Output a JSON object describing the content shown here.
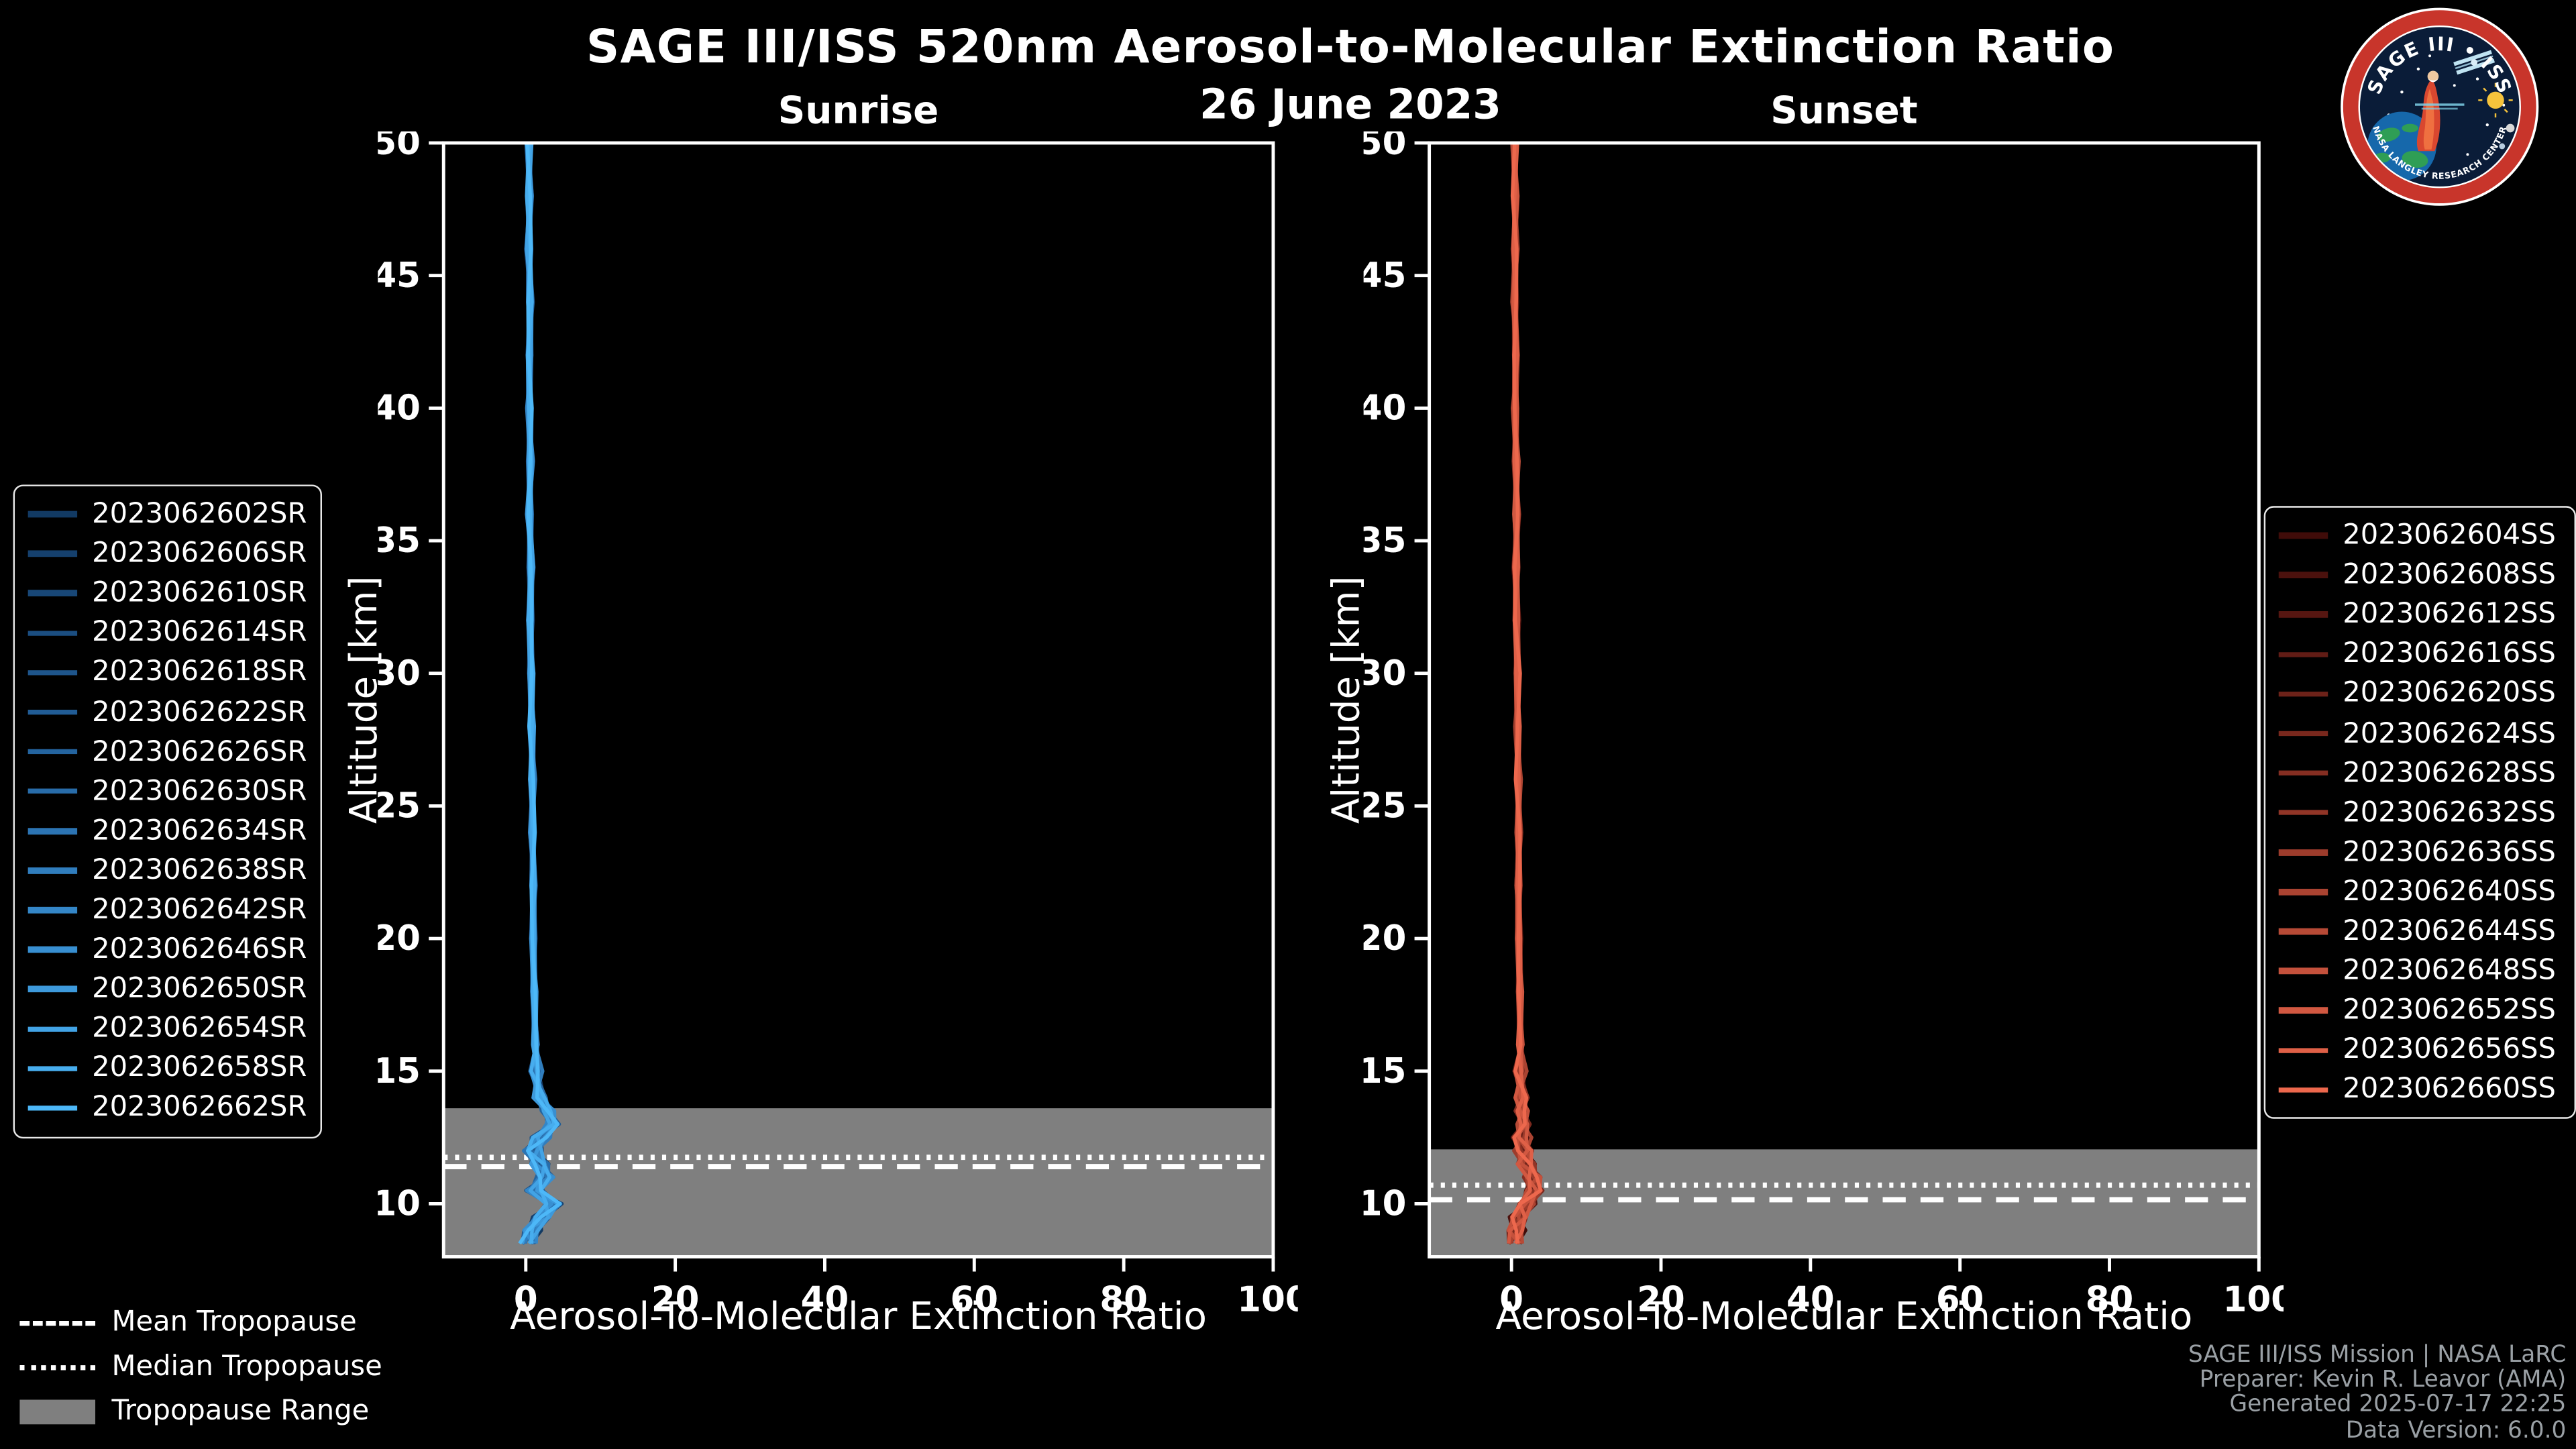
{
  "page": {
    "title": "SAGE III/ISS 520nm Aerosol-to-Molecular Extinction Ratio",
    "date": "26 June 2023",
    "background": "#000000"
  },
  "logo": {
    "text_top": "SAGE III • ISS",
    "text_bottom": "NASA LANGLEY RESEARCH CENTER",
    "ring_color": "#c8352b",
    "inner_color": "#0a1c38"
  },
  "tropopause_legend": {
    "items": [
      {
        "label": "Mean Tropopause",
        "style": "dashed"
      },
      {
        "label": "Median Tropopause",
        "style": "dotted"
      },
      {
        "label": "Tropopause Range",
        "style": "band"
      }
    ],
    "band_color": "#7f7f7f",
    "line_color": "#ffffff"
  },
  "credits": {
    "lines": [
      "SAGE III/ISS Mission | NASA LaRC",
      "Preparer: Kevin R. Leavor (AMA)",
      "Generated 2025-07-17 22:25",
      "Data Version: 6.0.0"
    ],
    "color": "#9aa0a5"
  },
  "chart_data": [
    {
      "type": "line",
      "title": "Sunrise",
      "xlabel": "Aerosol-To-Molecular Extinction Ratio",
      "ylabel": "Altitude [km]",
      "xlim": [
        -11,
        100
      ],
      "ylim": [
        8,
        50
      ],
      "xticks": [
        0,
        20,
        40,
        60,
        80,
        100
      ],
      "yticks": [
        10,
        15,
        20,
        25,
        30,
        35,
        40,
        45,
        50
      ],
      "grid": false,
      "legend_position": "left",
      "series_labels": [
        "2023062602SR",
        "2023062606SR",
        "2023062610SR",
        "2023062614SR",
        "2023062618SR",
        "2023062622SR",
        "2023062626SR",
        "2023062630SR",
        "2023062634SR",
        "2023062638SR",
        "2023062642SR",
        "2023062646SR",
        "2023062650SR",
        "2023062654SR",
        "2023062658SR",
        "2023062662SR"
      ],
      "series_colors": [
        "#123a63",
        "#15406d",
        "#184777",
        "#1b4e81",
        "#1e558b",
        "#215c95",
        "#24649f",
        "#286ca9",
        "#2c74b3",
        "#307dbd",
        "#3486c7",
        "#388fd1",
        "#3d99db",
        "#42a3e5",
        "#47adee",
        "#4db8f8"
      ],
      "tropopause": {
        "mean_km": 11.4,
        "median_km": 11.75,
        "range_top_km": 13.6,
        "range_bottom_km": 8.0
      },
      "profile": {
        "altitude_km": [
          50,
          48,
          46,
          44,
          42,
          40,
          38,
          36,
          34,
          32,
          30,
          28,
          26,
          24,
          22,
          20,
          18,
          16,
          15,
          14,
          13.5,
          13,
          12.5,
          12,
          11.5,
          11,
          10.5,
          10,
          9.5,
          9,
          8.5
        ],
        "ratio": [
          0.4,
          0.5,
          0.4,
          0.6,
          0.5,
          0.5,
          0.6,
          0.5,
          0.7,
          0.6,
          0.7,
          0.8,
          0.9,
          0.9,
          1.0,
          1.0,
          1.1,
          1.3,
          1.4,
          1.8,
          3.0,
          3.6,
          2.0,
          1.0,
          1.8,
          2.6,
          1.2,
          3.6,
          2.2,
          0.8,
          0.3
        ]
      },
      "note": "16 overlapping near-zero vertical extinction-ratio profiles; values read from plot, bundle width ~1-2 ratio units above 16 km"
    },
    {
      "type": "line",
      "title": "Sunset",
      "xlabel": "Aerosol-To-Molecular Extinction Ratio",
      "ylabel": "Altitude [km]",
      "xlim": [
        -11,
        100
      ],
      "ylim": [
        8,
        50
      ],
      "xticks": [
        0,
        20,
        40,
        60,
        80,
        100
      ],
      "yticks": [
        10,
        15,
        20,
        25,
        30,
        35,
        40,
        45,
        50
      ],
      "grid": false,
      "legend_position": "right",
      "series_labels": [
        "2023062604SS",
        "2023062608SS",
        "2023062612SS",
        "2023062616SS",
        "2023062620SS",
        "2023062624SS",
        "2023062628SS",
        "2023062632SS",
        "2023062636SS",
        "2023062640SS",
        "2023062644SS",
        "2023062648SS",
        "2023062652SS",
        "2023062656SS",
        "2023062660SS"
      ],
      "series_colors": [
        "#400c09",
        "#4b110d",
        "#561611",
        "#611c15",
        "#6d2219",
        "#79281d",
        "#852e22",
        "#913527",
        "#9d3c2c",
        "#aa4331",
        "#b74a36",
        "#c4513c",
        "#d15841",
        "#df6047",
        "#ed684d"
      ],
      "tropopause": {
        "mean_km": 10.15,
        "median_km": 10.7,
        "range_top_km": 12.05,
        "range_bottom_km": 8.0
      },
      "profile": {
        "altitude_km": [
          50,
          48,
          46,
          44,
          42,
          40,
          38,
          36,
          34,
          32,
          30,
          28,
          26,
          24,
          22,
          20,
          18,
          16,
          15,
          14,
          13.5,
          13,
          12.5,
          12,
          11.5,
          11,
          10.5,
          10,
          9.5,
          9,
          8.5
        ],
        "ratio": [
          0.4,
          0.5,
          0.5,
          0.4,
          0.6,
          0.5,
          0.6,
          0.7,
          0.6,
          0.7,
          0.8,
          0.8,
          0.9,
          1.0,
          0.9,
          1.0,
          1.1,
          1.2,
          1.2,
          1.3,
          1.4,
          1.6,
          1.4,
          1.6,
          1.9,
          2.8,
          3.1,
          2.0,
          1.0,
          0.6,
          0.4
        ]
      },
      "note": "15 overlapping near-zero vertical extinction-ratio profiles"
    }
  ]
}
